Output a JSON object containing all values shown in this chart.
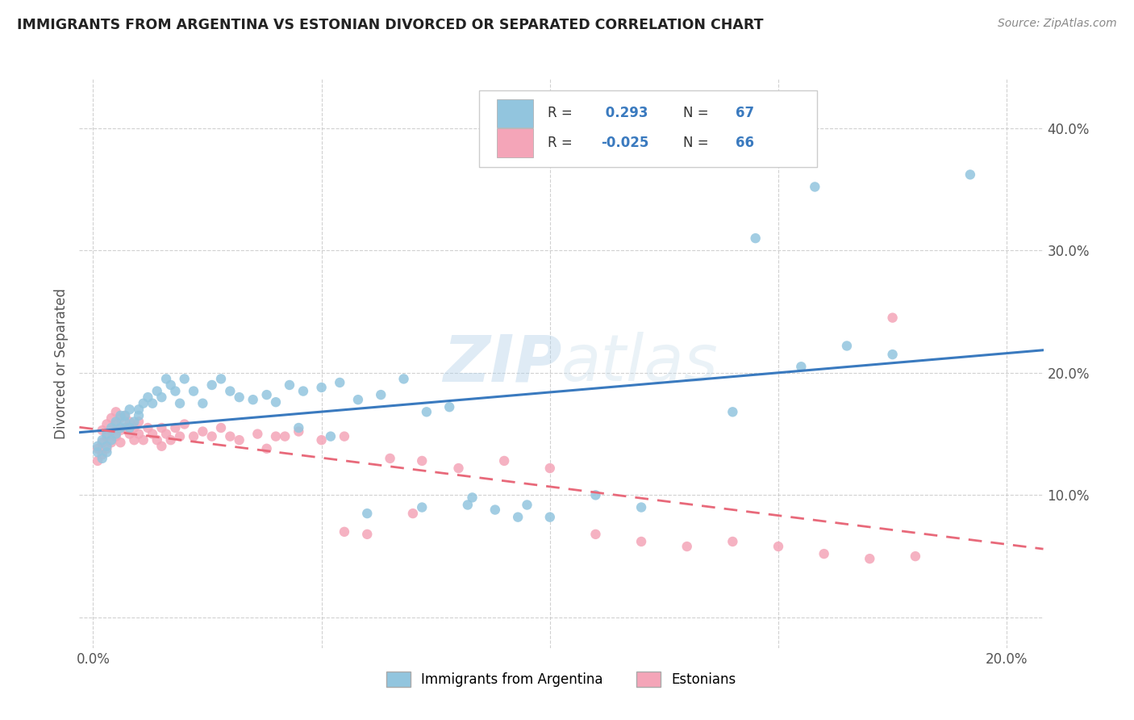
{
  "title": "IMMIGRANTS FROM ARGENTINA VS ESTONIAN DIVORCED OR SEPARATED CORRELATION CHART",
  "source": "Source: ZipAtlas.com",
  "ylabel_label": "Divorced or Separated",
  "xlim": [
    -0.003,
    0.208
  ],
  "ylim": [
    -0.025,
    0.44
  ],
  "legend1_label": "Immigrants from Argentina",
  "legend2_label": "Estonians",
  "R1": "0.293",
  "N1": "67",
  "R2": "-0.025",
  "N2": "66",
  "blue_color": "#92c5de",
  "pink_color": "#f4a5b8",
  "blue_line_color": "#3a7abf",
  "pink_line_color": "#e8697a",
  "blue_scatter_x": [
    0.001,
    0.001,
    0.002,
    0.002,
    0.003,
    0.003,
    0.003,
    0.004,
    0.004,
    0.005,
    0.005,
    0.006,
    0.006,
    0.007,
    0.007,
    0.008,
    0.008,
    0.009,
    0.01,
    0.01,
    0.011,
    0.012,
    0.013,
    0.014,
    0.015,
    0.016,
    0.017,
    0.018,
    0.019,
    0.02,
    0.022,
    0.024,
    0.026,
    0.028,
    0.03,
    0.032,
    0.035,
    0.038,
    0.04,
    0.043,
    0.046,
    0.05,
    0.054,
    0.058,
    0.063,
    0.068,
    0.073,
    0.078,
    0.083,
    0.088,
    0.095,
    0.1,
    0.045,
    0.052,
    0.06,
    0.072,
    0.082,
    0.093,
    0.11,
    0.12,
    0.14,
    0.155,
    0.165,
    0.145,
    0.158,
    0.175,
    0.192
  ],
  "blue_scatter_y": [
    0.135,
    0.14,
    0.13,
    0.145,
    0.135,
    0.15,
    0.14,
    0.145,
    0.155,
    0.15,
    0.16,
    0.155,
    0.165,
    0.16,
    0.165,
    0.155,
    0.17,
    0.16,
    0.165,
    0.17,
    0.175,
    0.18,
    0.175,
    0.185,
    0.18,
    0.195,
    0.19,
    0.185,
    0.175,
    0.195,
    0.185,
    0.175,
    0.19,
    0.195,
    0.185,
    0.18,
    0.178,
    0.182,
    0.176,
    0.19,
    0.185,
    0.188,
    0.192,
    0.178,
    0.182,
    0.195,
    0.168,
    0.172,
    0.098,
    0.088,
    0.092,
    0.082,
    0.155,
    0.148,
    0.085,
    0.09,
    0.092,
    0.082,
    0.1,
    0.09,
    0.168,
    0.205,
    0.222,
    0.31,
    0.352,
    0.215,
    0.362
  ],
  "pink_scatter_x": [
    0.001,
    0.001,
    0.002,
    0.002,
    0.002,
    0.003,
    0.003,
    0.003,
    0.004,
    0.004,
    0.004,
    0.005,
    0.005,
    0.005,
    0.006,
    0.006,
    0.006,
    0.007,
    0.007,
    0.008,
    0.008,
    0.009,
    0.009,
    0.01,
    0.01,
    0.011,
    0.012,
    0.013,
    0.014,
    0.015,
    0.015,
    0.016,
    0.017,
    0.018,
    0.019,
    0.02,
    0.022,
    0.024,
    0.026,
    0.028,
    0.03,
    0.032,
    0.036,
    0.04,
    0.045,
    0.05,
    0.055,
    0.06,
    0.038,
    0.042,
    0.065,
    0.072,
    0.08,
    0.09,
    0.1,
    0.11,
    0.12,
    0.13,
    0.14,
    0.15,
    0.16,
    0.17,
    0.175,
    0.18,
    0.055,
    0.07
  ],
  "pink_scatter_y": [
    0.128,
    0.138,
    0.133,
    0.143,
    0.153,
    0.138,
    0.148,
    0.158,
    0.143,
    0.153,
    0.163,
    0.148,
    0.158,
    0.168,
    0.143,
    0.153,
    0.163,
    0.155,
    0.165,
    0.15,
    0.16,
    0.145,
    0.155,
    0.15,
    0.16,
    0.145,
    0.155,
    0.15,
    0.145,
    0.14,
    0.155,
    0.15,
    0.145,
    0.155,
    0.148,
    0.158,
    0.148,
    0.152,
    0.148,
    0.155,
    0.148,
    0.145,
    0.15,
    0.148,
    0.152,
    0.145,
    0.07,
    0.068,
    0.138,
    0.148,
    0.13,
    0.128,
    0.122,
    0.128,
    0.122,
    0.068,
    0.062,
    0.058,
    0.062,
    0.058,
    0.052,
    0.048,
    0.245,
    0.05,
    0.148,
    0.085
  ]
}
